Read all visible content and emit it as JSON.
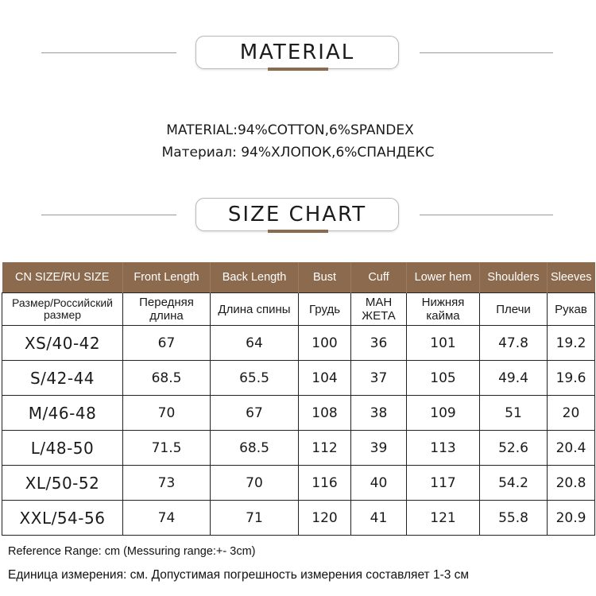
{
  "material_header": {
    "title": "MATERIAL"
  },
  "material_lines": [
    "MATERIAL:94%COTTON,6%SPANDEX",
    "Материал: 94%ХЛОПОК,6%СПАНДЕКС"
  ],
  "size_header": {
    "title": "SIZE CHART"
  },
  "colors": {
    "accent": "#8c6a4e",
    "header_text": "#ffffff",
    "border": "#222222"
  },
  "table": {
    "headers": [
      "CN SIZE/RU SIZE",
      "Front Length",
      "Back Length",
      "Bust",
      "Cuff",
      "Lower hem",
      "Shoulders",
      "Sleeves"
    ],
    "ru_headers": [
      "Размер/Российский размер",
      "Передняя длина",
      "Длина спины",
      "Грудь",
      "МАН ЖЕТА",
      "Нижняя кайма",
      "Плечи",
      "Рукав"
    ],
    "rows": [
      [
        "XS/40-42",
        "67",
        "64",
        "100",
        "36",
        "101",
        "47.8",
        "19.2"
      ],
      [
        "S/42-44",
        "68.5",
        "65.5",
        "104",
        "37",
        "105",
        "49.4",
        "19.6"
      ],
      [
        "M/46-48",
        "70",
        "67",
        "108",
        "38",
        "109",
        "51",
        "20"
      ],
      [
        "L/48-50",
        "71.5",
        "68.5",
        "112",
        "39",
        "113",
        "52.6",
        "20.4"
      ],
      [
        "XL/50-52",
        "73",
        "70",
        "116",
        "40",
        "117",
        "54.2",
        "20.8"
      ],
      [
        "XXL/54-56",
        "74",
        "71",
        "120",
        "41",
        "121",
        "55.8",
        "20.9"
      ]
    ]
  },
  "notes": {
    "reference": "Reference Range: cm (Messuring range:+- 3cm)",
    "ru_reference": "Единица измерения: см. Допустимая погрешность измерения составляет 1-3 см"
  }
}
